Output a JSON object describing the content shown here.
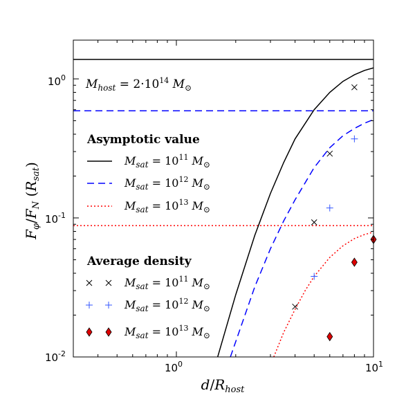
{
  "chart_data": {
    "type": "line",
    "xscale": "log",
    "yscale": "log",
    "xlim": [
      0.3,
      10
    ],
    "ylim": [
      0.01,
      1.9
    ],
    "xlabel": "d/R_host",
    "ylabel": "F_φ/F_N (R_sat)",
    "x_ticks": [
      {
        "value": 1,
        "label": "10^0",
        "base": "10",
        "exp": "0"
      },
      {
        "value": 10,
        "label": "10^1",
        "base": "10",
        "exp": "1"
      }
    ],
    "y_ticks": [
      {
        "value": 0.01,
        "label": "10^-2",
        "base": "10",
        "exp": "-2"
      },
      {
        "value": 0.1,
        "label": "10^-1",
        "base": "10",
        "exp": "-1"
      },
      {
        "value": 1,
        "label": "10^0",
        "base": "10",
        "exp": "0"
      }
    ],
    "annotation": "M_host = 2·10^14 M_⊙",
    "legend_headings": {
      "asymptotic": "Asymptotic value",
      "average": "Average density"
    },
    "asymptotic_series": [
      {
        "name": "M_sat = 10^11 M_⊙",
        "color": "#000000",
        "dash": "solid",
        "value": 1.38
      },
      {
        "name": "M_sat = 10^12 M_⊙",
        "color": "#0000ff",
        "dash": "dashed",
        "value": 0.59
      },
      {
        "name": "M_sat = 10^13 M_⊙",
        "color": "#ff0000",
        "dash": "dotted",
        "value": 0.088
      }
    ],
    "curve_series": [
      {
        "name": "M_sat = 10^11 M_⊙",
        "color": "#000000",
        "dash": "solid",
        "x": [
          1.62,
          2.0,
          2.5,
          3.0,
          3.5,
          4.0,
          5.0,
          6.0,
          7.0,
          8.0,
          9.0,
          10.0
        ],
        "y": [
          0.01,
          0.028,
          0.075,
          0.15,
          0.25,
          0.37,
          0.6,
          0.8,
          0.96,
          1.07,
          1.15,
          1.2
        ]
      },
      {
        "name": "M_sat = 10^12 M_⊙",
        "color": "#0000ff",
        "dash": "dashed",
        "x": [
          1.88,
          2.5,
          3.0,
          3.5,
          4.0,
          5.0,
          6.0,
          7.0,
          8.0,
          9.0,
          10.0
        ],
        "y": [
          0.01,
          0.032,
          0.06,
          0.095,
          0.135,
          0.23,
          0.32,
          0.39,
          0.44,
          0.48,
          0.51
        ]
      },
      {
        "name": "M_sat = 10^13 M_⊙",
        "color": "#ff0000",
        "dash": "dotted",
        "x": [
          3.12,
          3.5,
          4.0,
          4.5,
          5.0,
          6.0,
          7.0,
          8.0,
          9.0,
          10.0
        ],
        "y": [
          0.01,
          0.015,
          0.022,
          0.03,
          0.038,
          0.052,
          0.063,
          0.071,
          0.076,
          0.079
        ]
      }
    ],
    "point_series": [
      {
        "name": "M_sat = 10^11 M_⊙",
        "marker": "x",
        "color": "#000000",
        "x": [
          4.0,
          5.0,
          6.0,
          8.0
        ],
        "y": [
          0.023,
          0.093,
          0.29,
          0.87
        ]
      },
      {
        "name": "M_sat = 10^12 M_⊙",
        "marker": "+",
        "color": "#3355ff",
        "x": [
          5.0,
          6.0,
          8.0
        ],
        "y": [
          0.038,
          0.118,
          0.37
        ]
      },
      {
        "name": "M_sat = 10^13 M_⊙",
        "marker": "diamond",
        "color": "#dd0000",
        "x": [
          6.0,
          8.0,
          10.0
        ],
        "y": [
          0.014,
          0.048,
          0.07
        ]
      }
    ]
  }
}
